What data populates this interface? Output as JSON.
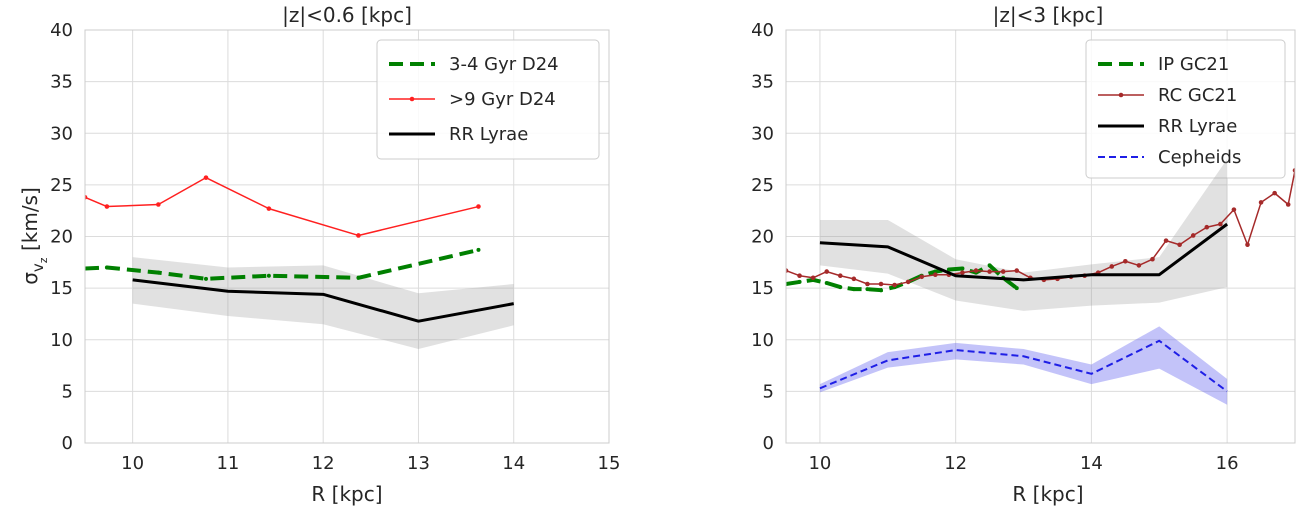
{
  "chart_data": [
    {
      "type": "line",
      "title": "|z|<0.6 [kpc]",
      "xlabel": "R [kpc]",
      "ylabel": "σ",
      "ylabel_sub": "v",
      "ylabel_subsub": "z",
      "ylabel_unit": " [km/s]",
      "xlim": [
        9.5,
        15
      ],
      "ylim": [
        0,
        40
      ],
      "xticks": [
        10,
        11,
        12,
        13,
        14,
        15
      ],
      "yticks": [
        0,
        5,
        10,
        15,
        20,
        25,
        30,
        35,
        40
      ],
      "grid": true,
      "legend_position": "top-right",
      "series": [
        {
          "name": "3-4 Gyr D24",
          "color": "#008000",
          "style": "dashed-thick",
          "markers": true,
          "x": [
            9.5,
            9.73,
            10.27,
            10.77,
            11.43,
            12.37,
            13.63
          ],
          "y": [
            16.9,
            17.0,
            16.5,
            15.9,
            16.2,
            16.0,
            18.7
          ]
        },
        {
          "name": ">9 Gyr D24",
          "color": "#ff2020",
          "style": "solid",
          "markers": true,
          "x": [
            9.5,
            9.73,
            10.27,
            10.77,
            11.43,
            12.37,
            13.63
          ],
          "y": [
            23.8,
            22.9,
            23.1,
            25.7,
            22.7,
            20.1,
            22.9
          ]
        },
        {
          "name": "RR Lyrae",
          "color": "#000000",
          "style": "solid-thick",
          "markers": false,
          "x": [
            10,
            11,
            12,
            13,
            14
          ],
          "y": [
            15.8,
            14.7,
            14.4,
            11.8,
            13.5
          ],
          "band_lower": [
            13.5,
            12.3,
            11.5,
            9.1,
            11.4
          ],
          "band_upper": [
            18.0,
            17.0,
            17.2,
            14.5,
            15.4
          ]
        }
      ]
    },
    {
      "type": "line",
      "title": "|z|<3 [kpc]",
      "xlabel": "R [kpc]",
      "xlim": [
        9.5,
        17
      ],
      "ylim": [
        0,
        40
      ],
      "xticks": [
        10,
        12,
        14,
        16
      ],
      "yticks": [
        0,
        5,
        10,
        15,
        20,
        25,
        30,
        35,
        40
      ],
      "grid": true,
      "legend_position": "top-right",
      "series": [
        {
          "name": "IP GC21",
          "color": "#008000",
          "style": "dashed-thick",
          "markers": true,
          "x": [
            9.5,
            9.7,
            9.9,
            10.1,
            10.3,
            10.5,
            10.7,
            10.9,
            11.1,
            11.3,
            11.5,
            11.7,
            11.9,
            12.1,
            12.3,
            12.5,
            12.7,
            12.9
          ],
          "y": [
            15.4,
            15.6,
            15.8,
            15.5,
            15.1,
            14.9,
            14.9,
            14.8,
            15.1,
            15.6,
            16.2,
            16.6,
            16.8,
            16.9,
            16.5,
            17.2,
            16.0,
            15.0
          ]
        },
        {
          "name": "RC GC21",
          "color": "#a52a2a",
          "style": "solid",
          "markers": true,
          "x": [
            9.5,
            9.7,
            9.9,
            10.1,
            10.3,
            10.5,
            10.7,
            10.9,
            11.1,
            11.3,
            11.5,
            11.7,
            11.9,
            12.1,
            12.3,
            12.5,
            12.7,
            12.9,
            13.1,
            13.3,
            13.5,
            13.7,
            13.9,
            14.1,
            14.3,
            14.5,
            14.7,
            14.9,
            15.1,
            15.3,
            15.5,
            15.7,
            15.9,
            16.1,
            16.3,
            16.5,
            16.7,
            16.9,
            17.0
          ],
          "y": [
            16.7,
            16.2,
            16.0,
            16.6,
            16.2,
            15.9,
            15.4,
            15.4,
            15.3,
            15.6,
            16.1,
            16.3,
            16.3,
            16.5,
            16.7,
            16.6,
            16.6,
            16.7,
            16.0,
            15.8,
            15.9,
            16.1,
            16.2,
            16.5,
            17.1,
            17.6,
            17.2,
            17.8,
            19.6,
            19.2,
            20.1,
            20.9,
            21.2,
            22.6,
            19.2,
            23.3,
            24.2,
            23.1,
            26.4
          ]
        },
        {
          "name": "RR Lyrae",
          "color": "#000000",
          "style": "solid-thick",
          "markers": false,
          "x": [
            10,
            11,
            12,
            13,
            14,
            15,
            16
          ],
          "y": [
            19.4,
            19.0,
            16.2,
            15.8,
            16.3,
            16.3,
            21.2
          ],
          "band_lower": [
            17.2,
            16.4,
            13.8,
            12.8,
            13.3,
            13.6,
            15.1
          ],
          "band_upper": [
            21.6,
            21.6,
            17.8,
            16.5,
            17.3,
            18.0,
            27.5
          ]
        },
        {
          "name": "Cepheids",
          "color": "#1f1fe6",
          "style": "dashed",
          "markers": false,
          "x": [
            10,
            11,
            12,
            13,
            14,
            15,
            16
          ],
          "y": [
            5.3,
            8.0,
            9.0,
            8.4,
            6.7,
            9.9,
            5.0
          ],
          "band_lower": [
            4.9,
            7.3,
            8.1,
            7.6,
            5.7,
            7.2,
            3.7
          ],
          "band_upper": [
            5.7,
            8.8,
            9.7,
            9.1,
            7.6,
            11.3,
            6.2
          ]
        }
      ]
    }
  ]
}
